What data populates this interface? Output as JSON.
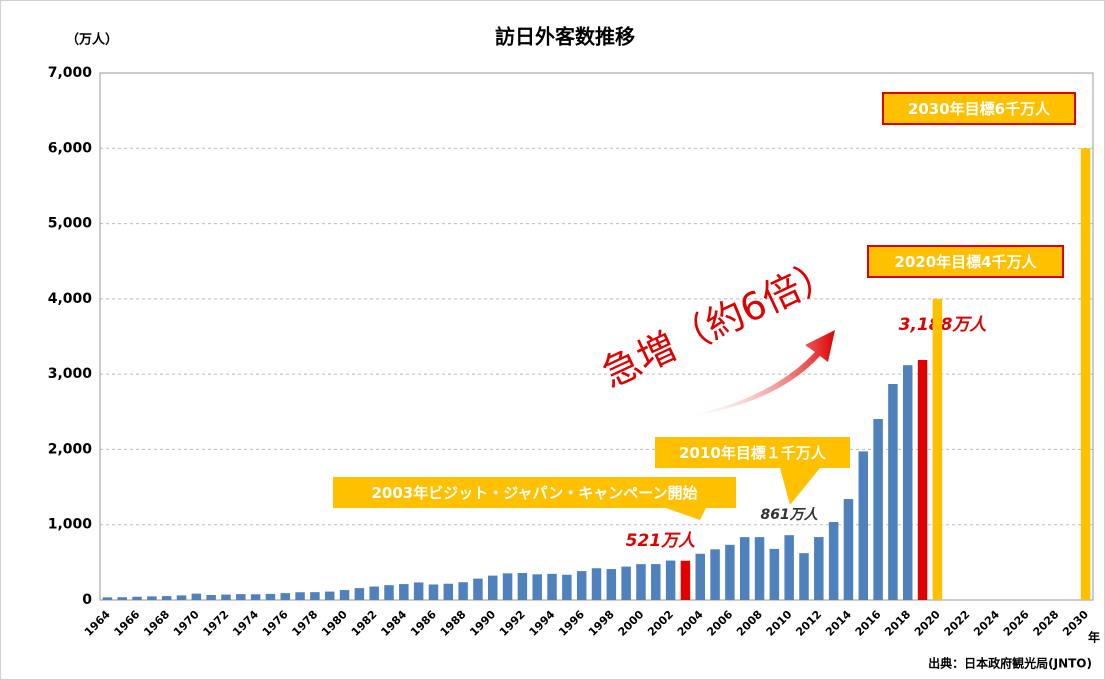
{
  "chart_data": {
    "type": "bar",
    "title": "訪日外客数推移",
    "y_label": "（万人）",
    "x_label": "年",
    "source": "出典：日本政府観光局(JNTO)",
    "categories": [
      "1964",
      null,
      "1966",
      null,
      "1968",
      null,
      "1970",
      null,
      "1972",
      null,
      "1974",
      null,
      "1976",
      null,
      "1978",
      null,
      "1980",
      null,
      "1982",
      null,
      "1984",
      null,
      "1986",
      null,
      "1988",
      null,
      "1990",
      null,
      "1992",
      null,
      "1994",
      null,
      "1996",
      null,
      "1998",
      null,
      "2000",
      null,
      "2002",
      null,
      "2004",
      null,
      "2006",
      null,
      "2008",
      null,
      "2010",
      null,
      "2012",
      null,
      "2014",
      null,
      "2016",
      null,
      "2018",
      null,
      "2020",
      null,
      "2022",
      null,
      "2024",
      null,
      "2026",
      null,
      "2028",
      null,
      "2030"
    ],
    "values": [
      35,
      37,
      43,
      48,
      52,
      61,
      85,
      66,
      72,
      78,
      76,
      81,
      91,
      103,
      104,
      112,
      132,
      158,
      179,
      197,
      211,
      233,
      206,
      216,
      236,
      284,
      324,
      354,
      358,
      341,
      347,
      335,
      384,
      422,
      411,
      444,
      476,
      477,
      524,
      521,
      614,
      673,
      733,
      835,
      835,
      679,
      861,
      622,
      836,
      1036,
      1341,
      1974,
      2404,
      2869,
      3119,
      3188,
      4000,
      null,
      null,
      null,
      null,
      null,
      null,
      null,
      null,
      null,
      6000
    ],
    "colors": [
      "#4f81bd",
      "#4f81bd",
      "#4f81bd",
      "#4f81bd",
      "#4f81bd",
      "#4f81bd",
      "#4f81bd",
      "#4f81bd",
      "#4f81bd",
      "#4f81bd",
      "#4f81bd",
      "#4f81bd",
      "#4f81bd",
      "#4f81bd",
      "#4f81bd",
      "#4f81bd",
      "#4f81bd",
      "#4f81bd",
      "#4f81bd",
      "#4f81bd",
      "#4f81bd",
      "#4f81bd",
      "#4f81bd",
      "#4f81bd",
      "#4f81bd",
      "#4f81bd",
      "#4f81bd",
      "#4f81bd",
      "#4f81bd",
      "#4f81bd",
      "#4f81bd",
      "#4f81bd",
      "#4f81bd",
      "#4f81bd",
      "#4f81bd",
      "#4f81bd",
      "#4f81bd",
      "#4f81bd",
      "#4f81bd",
      "#e00000",
      "#4f81bd",
      "#4f81bd",
      "#4f81bd",
      "#4f81bd",
      "#4f81bd",
      "#4f81bd",
      "#4f81bd",
      "#4f81bd",
      "#4f81bd",
      "#4f81bd",
      "#4f81bd",
      "#4f81bd",
      "#4f81bd",
      "#4f81bd",
      "#4f81bd",
      "#e00000",
      "#ffc000",
      null,
      null,
      null,
      null,
      null,
      null,
      null,
      null,
      null,
      "#ffc000"
    ],
    "value_labels": [
      null,
      null,
      null,
      null,
      null,
      null,
      null,
      null,
      null,
      null,
      null,
      null,
      null,
      null,
      null,
      null,
      null,
      null,
      null,
      null,
      null,
      null,
      null,
      null,
      null,
      null,
      null,
      null,
      null,
      null,
      null,
      null,
      null,
      null,
      null,
      null,
      null,
      null,
      null,
      "521万人",
      null,
      null,
      null,
      null,
      null,
      null,
      "861万人",
      null,
      null,
      null,
      null,
      null,
      null,
      null,
      null,
      "3,188万人",
      null,
      null,
      null,
      null,
      null,
      null,
      null,
      null,
      null,
      null,
      null
    ],
    "annotations": [
      "急増（約6倍）",
      "2003年ビジット・ジャパン・キャンペーン開始",
      "2010年目標１千万人",
      "2020年目標4千万人",
      "2030年目標6千万人"
    ],
    "ylim": [
      0,
      7000
    ],
    "yticks": [
      0,
      {
        "value": 1000,
        "label": "1,000"
      },
      {
        "value": 2000,
        "label": "2,000"
      },
      {
        "value": 3000,
        "label": "3,000"
      },
      {
        "value": 4000,
        "label": "4,000"
      },
      {
        "value": 5000,
        "label": "5,000"
      },
      {
        "value": 6000,
        "label": "6,000"
      },
      {
        "value": 7000,
        "label": "7,000"
      }
    ],
    "grid": true
  }
}
